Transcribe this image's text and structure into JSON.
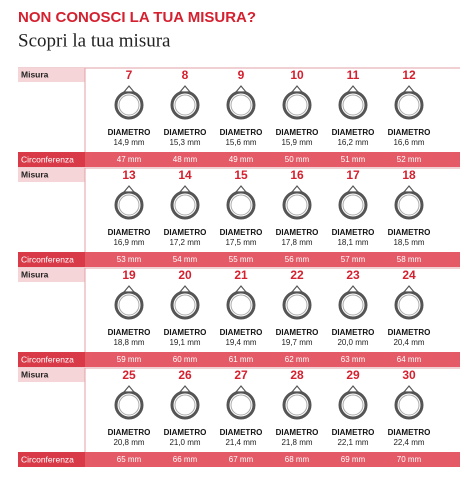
{
  "header": {
    "title": "NON CONOSCI LA TUA MISURA?",
    "subtitle": "Scopri la tua misura"
  },
  "labels": {
    "size": "Misura",
    "circumference": "Circonferenza",
    "diameter": "DIAMETRO"
  },
  "blocks": [
    {
      "sizes": [
        "7",
        "8",
        "9",
        "10",
        "11",
        "12"
      ],
      "diameters": [
        "14,9 mm",
        "15,3 mm",
        "15,6 mm",
        "15,9 mm",
        "16,2 mm",
        "16,6 mm"
      ],
      "circumferences": [
        "47 mm",
        "48 mm",
        "49 mm",
        "50 mm",
        "51 mm",
        "52 mm"
      ]
    },
    {
      "sizes": [
        "13",
        "14",
        "15",
        "16",
        "17",
        "18"
      ],
      "diameters": [
        "16,9 mm",
        "17,2 mm",
        "17,5 mm",
        "17,8 mm",
        "18,1 mm",
        "18,5 mm"
      ],
      "circumferences": [
        "53 mm",
        "54 mm",
        "55 mm",
        "56 mm",
        "57 mm",
        "58 mm"
      ]
    },
    {
      "sizes": [
        "19",
        "20",
        "21",
        "22",
        "23",
        "24"
      ],
      "diameters": [
        "18,8 mm",
        "19,1 mm",
        "19,4 mm",
        "19,7 mm",
        "20,0 mm",
        "20,4 mm"
      ],
      "circumferences": [
        "59 mm",
        "60 mm",
        "61 mm",
        "62 mm",
        "63 mm",
        "64 mm"
      ]
    },
    {
      "sizes": [
        "25",
        "26",
        "27",
        "28",
        "29",
        "30"
      ],
      "diameters": [
        "20,8 mm",
        "21,0 mm",
        "21,4 mm",
        "21,8 mm",
        "22,1 mm",
        "22,4 mm"
      ],
      "circumferences": [
        "65 mm",
        "66 mm",
        "67 mm",
        "68 mm",
        "69 mm",
        "70 mm"
      ]
    }
  ]
}
